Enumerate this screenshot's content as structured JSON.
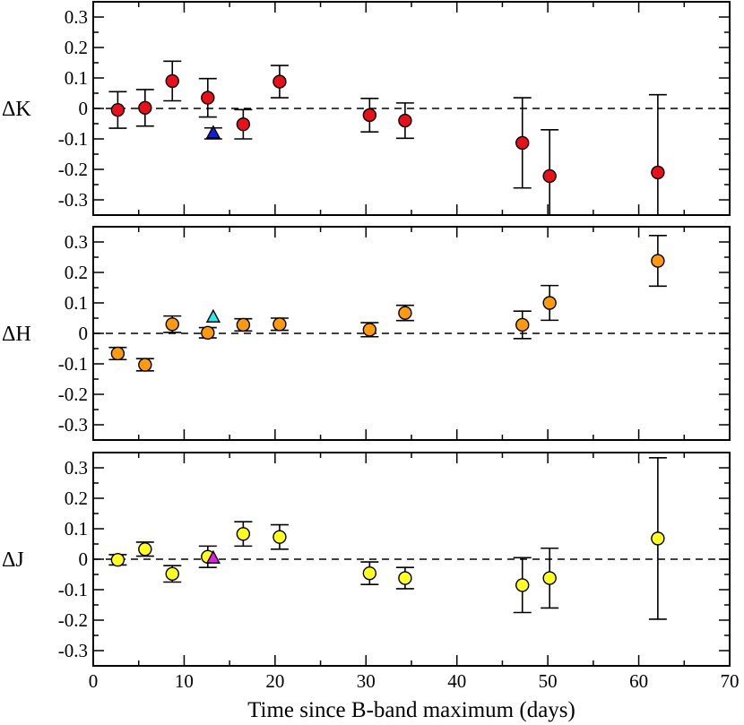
{
  "chart_data": {
    "type": "scatter",
    "xlabel": "Time since B-band maximum (days)",
    "xlim": [
      0,
      70
    ],
    "x_ticks": [
      "0",
      "10",
      "20",
      "30",
      "40",
      "50",
      "60",
      "70"
    ],
    "ylim": [
      -0.35,
      0.35
    ],
    "y_ticks": [
      "0.3",
      "0.2",
      "0.1",
      "0",
      "-0.1",
      "-0.2",
      "-0.3"
    ],
    "reference_line": 0,
    "panels": [
      {
        "id": "K",
        "ylabel": "ΔK",
        "series": [
          {
            "name": "circles",
            "marker": "circle",
            "color": "#e8101a",
            "points": [
              {
                "x": 2.7,
                "y": -0.005,
                "err": 0.06
              },
              {
                "x": 5.7,
                "y": 0.002,
                "err": 0.06
              },
              {
                "x": 8.7,
                "y": 0.09,
                "err": 0.065
              },
              {
                "x": 12.6,
                "y": 0.035,
                "err": 0.063
              },
              {
                "x": 16.5,
                "y": -0.052,
                "err": 0.048
              },
              {
                "x": 20.5,
                "y": 0.088,
                "err": 0.053
              },
              {
                "x": 30.4,
                "y": -0.022,
                "err": 0.055
              },
              {
                "x": 34.3,
                "y": -0.04,
                "err": 0.058
              },
              {
                "x": 47.2,
                "y": -0.113,
                "err": 0.148
              },
              {
                "x": 50.2,
                "y": -0.222,
                "err": 0.152
              },
              {
                "x": 62.1,
                "y": -0.21,
                "err": 0.255
              }
            ]
          },
          {
            "name": "triangle",
            "marker": "triangle",
            "color": "#1020d8",
            "points": [
              {
                "x": 13.2,
                "y": -0.082,
                "err": 0.018
              }
            ]
          }
        ]
      },
      {
        "id": "H",
        "ylabel": "ΔH",
        "series": [
          {
            "name": "circles",
            "marker": "circle",
            "color": "#ff9a10",
            "points": [
              {
                "x": 2.7,
                "y": -0.066,
                "err": 0.02
              },
              {
                "x": 5.7,
                "y": -0.103,
                "err": 0.02
              },
              {
                "x": 8.7,
                "y": 0.03,
                "err": 0.027
              },
              {
                "x": 12.6,
                "y": 0.002,
                "err": 0.017
              },
              {
                "x": 16.5,
                "y": 0.028,
                "err": 0.02
              },
              {
                "x": 20.5,
                "y": 0.03,
                "err": 0.02
              },
              {
                "x": 30.4,
                "y": 0.012,
                "err": 0.023
              },
              {
                "x": 34.3,
                "y": 0.067,
                "err": 0.025
              },
              {
                "x": 47.2,
                "y": 0.028,
                "err": 0.045
              },
              {
                "x": 50.2,
                "y": 0.1,
                "err": 0.057
              },
              {
                "x": 62.1,
                "y": 0.238,
                "err": 0.083
              }
            ]
          },
          {
            "name": "triangle",
            "marker": "triangle",
            "color": "#30e8f0",
            "points": [
              {
                "x": 13.2,
                "y": 0.052,
                "err": 0.0
              }
            ]
          }
        ]
      },
      {
        "id": "J",
        "ylabel": "ΔJ",
        "series": [
          {
            "name": "circles",
            "marker": "circle",
            "color": "#ffff22",
            "points": [
              {
                "x": 2.7,
                "y": -0.002,
                "err": 0.017
              },
              {
                "x": 5.7,
                "y": 0.033,
                "err": 0.023
              },
              {
                "x": 8.7,
                "y": -0.048,
                "err": 0.027
              },
              {
                "x": 12.6,
                "y": 0.008,
                "err": 0.035
              },
              {
                "x": 16.5,
                "y": 0.083,
                "err": 0.04
              },
              {
                "x": 20.5,
                "y": 0.073,
                "err": 0.04
              },
              {
                "x": 30.4,
                "y": -0.046,
                "err": 0.037
              },
              {
                "x": 34.3,
                "y": -0.062,
                "err": 0.035
              },
              {
                "x": 47.2,
                "y": -0.085,
                "err": 0.09
              },
              {
                "x": 50.2,
                "y": -0.062,
                "err": 0.098
              },
              {
                "x": 62.1,
                "y": 0.068,
                "err": 0.265
              }
            ]
          },
          {
            "name": "triangle",
            "marker": "triangle",
            "color": "#e020e8",
            "points": [
              {
                "x": 13.2,
                "y": 0.002,
                "err": 0.0
              }
            ]
          }
        ]
      }
    ]
  }
}
